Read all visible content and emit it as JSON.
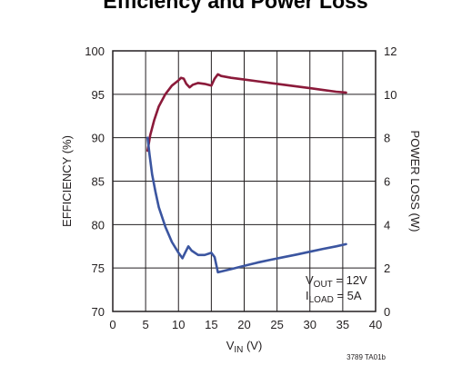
{
  "chart_data": {
    "type": "line",
    "title": "Efficiency and Power Loss",
    "xlabel": {
      "main": "V",
      "sub": "IN",
      "unit": " (V)"
    },
    "ylabel_left": "EFFICIENCY (%)",
    "ylabel_right": "POWER LOSS (W)",
    "xlim": [
      0,
      40
    ],
    "ylim_left": [
      70,
      100
    ],
    "ylim_right": [
      0,
      12
    ],
    "x_ticks": [
      0,
      5,
      10,
      15,
      20,
      25,
      30,
      35,
      40
    ],
    "y_ticks_left": [
      70,
      75,
      80,
      85,
      90,
      95,
      100
    ],
    "y_ticks_right": [
      0,
      2,
      4,
      6,
      8,
      10,
      12
    ],
    "grid": true,
    "series": [
      {
        "axis": "left",
        "color": "#8b1a3a",
        "x": [
          5.3,
          5.7,
          6.3,
          7.0,
          8.0,
          9.0,
          10.0,
          10.4,
          10.8,
          11.2,
          11.7,
          12.2,
          13.0,
          14.0,
          15.0,
          15.5,
          16.0,
          16.5,
          18,
          20,
          22,
          24,
          26,
          28,
          30,
          32,
          34,
          35.5
        ],
        "y": [
          88.5,
          90.3,
          92.0,
          93.6,
          95.0,
          96.0,
          96.6,
          96.9,
          96.8,
          96.2,
          95.8,
          96.1,
          96.3,
          96.2,
          96.0,
          96.8,
          97.3,
          97.1,
          96.9,
          96.7,
          96.5,
          96.3,
          96.1,
          95.9,
          95.7,
          95.5,
          95.3,
          95.2
        ]
      },
      {
        "axis": "right",
        "color": "#3b55a0",
        "x": [
          5.3,
          5.6,
          6.0,
          6.5,
          7.0,
          8.0,
          9.0,
          10.0,
          10.6,
          11.0,
          11.5,
          12.0,
          13.0,
          14.0,
          15.0,
          15.5,
          16.0,
          18,
          20,
          22,
          24,
          26,
          28,
          30,
          32,
          34,
          35.5
        ],
        "y": [
          8.0,
          7.2,
          6.3,
          5.5,
          4.8,
          3.9,
          3.2,
          2.7,
          2.45,
          2.7,
          3.0,
          2.8,
          2.6,
          2.6,
          2.7,
          2.5,
          1.8,
          1.95,
          2.1,
          2.25,
          2.38,
          2.5,
          2.62,
          2.75,
          2.88,
          3.0,
          3.1
        ]
      }
    ],
    "annotations": [
      {
        "main": "V",
        "sub": "OUT",
        "rest": " = 12V"
      },
      {
        "main": "I",
        "sub": "LOAD",
        "rest": " = 5A"
      }
    ],
    "figure_code": "3789 TA01b"
  }
}
